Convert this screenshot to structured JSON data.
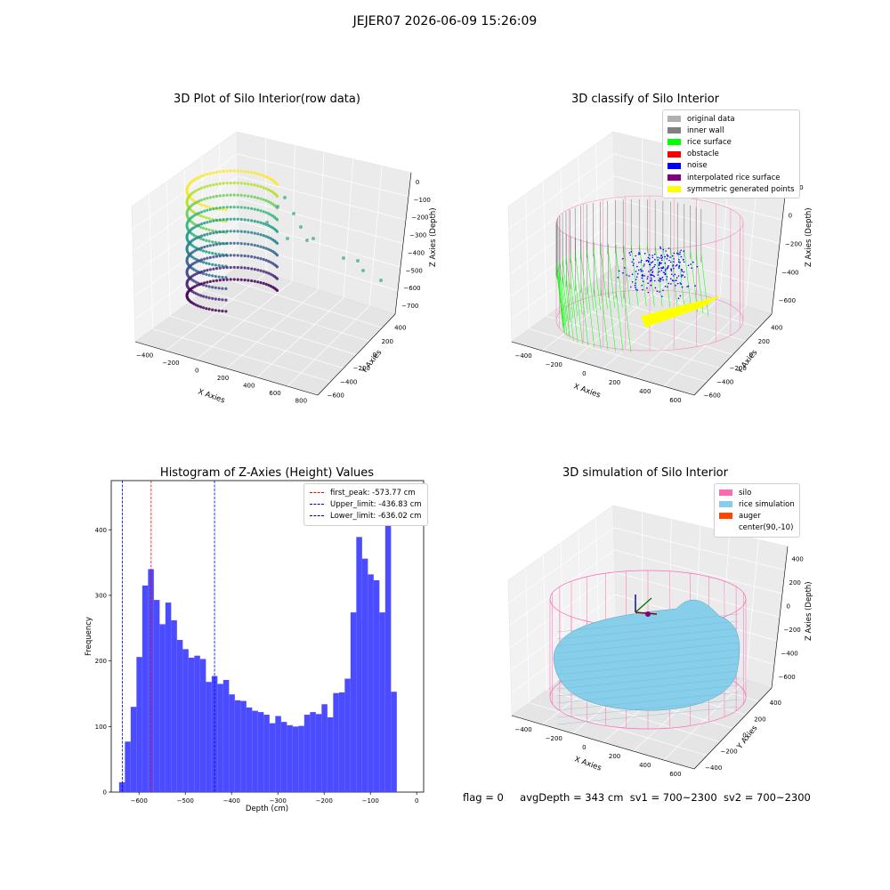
{
  "suptitle": "JEJER07 2026-06-09 15:26:09",
  "colors": {
    "hist_bar": "#4b4bff",
    "first_peak": "#ff0000",
    "limits": "#0000c8",
    "silo": "#ff69b4",
    "rice": "#87ceeb",
    "auger": "#ff4500",
    "wall": "#808080",
    "surface": "#00ff00",
    "noise": "#0000ff",
    "symmetric": "#ffff00"
  },
  "panels": {
    "raw": {
      "title": "3D Plot of Silo Interior(row data)",
      "xlabel": "X Axies",
      "ylabel": "Y Axies",
      "zlabel": "Z Axies (Depth)",
      "xticks": [
        "−400",
        "−200",
        "0",
        "200",
        "400",
        "600",
        "800"
      ],
      "yticks": [
        "−600",
        "−400",
        "−200",
        "0",
        "200",
        "400"
      ],
      "zticks": [
        "0",
        "−100",
        "−200",
        "−300",
        "−400",
        "−500",
        "−600",
        "−700"
      ]
    },
    "classify": {
      "title": "3D classify of Silo Interior",
      "xlabel": "X Axies",
      "ylabel": "Y Axies",
      "zlabel": "Z Axies (Depth)",
      "xticks": [
        "−400",
        "−200",
        "0",
        "200",
        "400",
        "600"
      ],
      "yticks": [
        "−600",
        "−400",
        "−200",
        "0",
        "200",
        "400"
      ],
      "zticks": [
        "200",
        "0",
        "−200",
        "−400",
        "−600"
      ],
      "legend": [
        {
          "label": "original data",
          "color": "#b0b0b0"
        },
        {
          "label": "inner wall",
          "color": "#808080"
        },
        {
          "label": "rice surface",
          "color": "#00ff00"
        },
        {
          "label": "obstacle",
          "color": "#ff0000"
        },
        {
          "label": "noise",
          "color": "#0000ff"
        },
        {
          "label": "interpolated rice surface",
          "color": "#800080"
        },
        {
          "label": "symmetric generated points",
          "color": "#ffff00"
        }
      ]
    },
    "simulation": {
      "title": "3D simulation of Silo Interior",
      "xlabel": "X Axies",
      "ylabel": "Y Axies",
      "zlabel": "Z Axies (Depth)",
      "xticks": [
        "−400",
        "−200",
        "0",
        "200",
        "400",
        "600"
      ],
      "yticks": [
        "−400",
        "−200",
        "0",
        "200",
        "400"
      ],
      "zticks": [
        "400",
        "200",
        "0",
        "−200",
        "−400",
        "−600"
      ],
      "legend": [
        {
          "label": "silo",
          "color": "#ff69b4"
        },
        {
          "label": "rice simulation",
          "color": "#87ceeb"
        },
        {
          "label": "auger",
          "color": "#ff4500"
        },
        {
          "label": "center(90,-10)",
          "color": ""
        }
      ]
    }
  },
  "chart_data": {
    "type": "bar",
    "title": "Histogram of Z-Axies (Height) Values",
    "xlabel": "Depth (cm)",
    "ylabel": "Frequency",
    "xlim": [
      -660,
      15
    ],
    "ylim": [
      0,
      475
    ],
    "xticks": [
      -600,
      -500,
      -400,
      -300,
      -200,
      -100,
      0
    ],
    "yticks": [
      0,
      100,
      200,
      300,
      400
    ],
    "bin_start": -643,
    "bin_width": 12.5,
    "values": [
      15,
      77,
      130,
      206,
      315,
      340,
      293,
      256,
      289,
      262,
      232,
      218,
      205,
      208,
      203,
      168,
      177,
      165,
      171,
      149,
      140,
      139,
      129,
      124,
      122,
      118,
      105,
      116,
      107,
      102,
      100,
      101,
      118,
      122,
      119,
      134,
      114,
      151,
      152,
      173,
      274,
      389,
      356,
      332,
      323,
      274,
      448,
      153
    ],
    "lines": [
      {
        "label": "first_peak: -573.77 cm",
        "x": -573.77,
        "kind": "first_peak"
      },
      {
        "label": "Upper_limit: -436.83 cm",
        "x": -436.83,
        "kind": "limit"
      },
      {
        "label": "Lower_limit: -636.02 cm",
        "x": -636.02,
        "kind": "limit"
      }
    ]
  },
  "status": {
    "flag": "flag = 0",
    "avg": "avgDepth = 343 cm",
    "sv1": "sv1 = 700~2300",
    "sv2": "sv2 = 700~2300"
  }
}
